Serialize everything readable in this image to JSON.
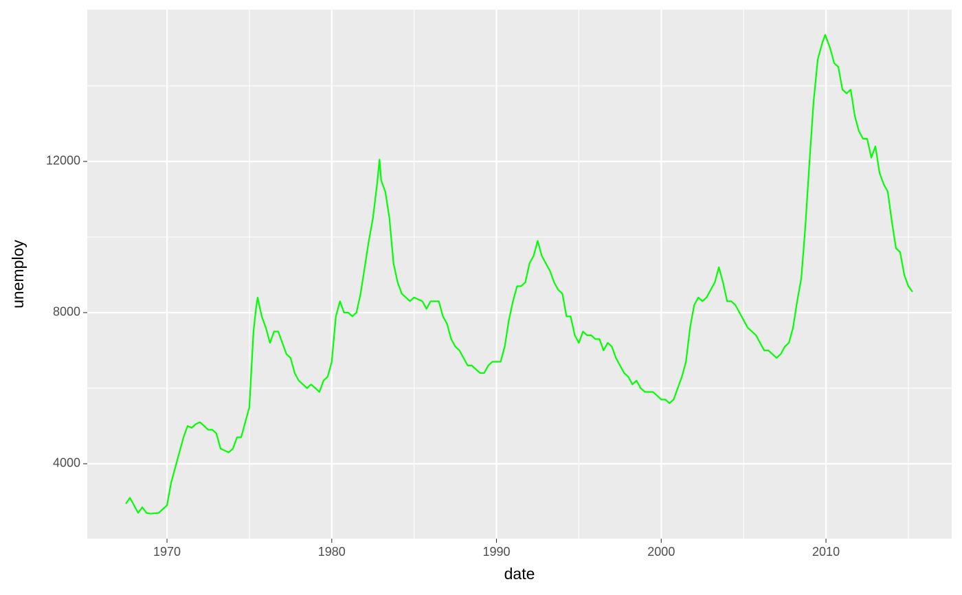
{
  "chart_data": {
    "type": "line",
    "x_label": "date",
    "y_label": "unemploy",
    "x": [
      1967.5,
      1967.75,
      1968.0,
      1968.25,
      1968.5,
      1968.75,
      1969.0,
      1969.5,
      1969.75,
      1970.0,
      1970.25,
      1970.5,
      1970.75,
      1971.0,
      1971.25,
      1971.5,
      1971.75,
      1972.0,
      1972.25,
      1972.5,
      1972.75,
      1973.0,
      1973.25,
      1973.5,
      1973.75,
      1974.0,
      1974.25,
      1974.5,
      1974.75,
      1975.0,
      1975.25,
      1975.4,
      1975.5,
      1975.75,
      1976.0,
      1976.25,
      1976.5,
      1976.75,
      1977.0,
      1977.25,
      1977.5,
      1977.75,
      1978.0,
      1978.25,
      1978.5,
      1978.75,
      1979.0,
      1979.25,
      1979.5,
      1979.75,
      1980.0,
      1980.25,
      1980.5,
      1980.75,
      1981.0,
      1981.25,
      1981.5,
      1981.75,
      1982.0,
      1982.25,
      1982.5,
      1982.75,
      1982.9,
      1983.0,
      1983.25,
      1983.5,
      1983.75,
      1984.0,
      1984.25,
      1984.5,
      1984.75,
      1985.0,
      1985.5,
      1985.75,
      1986.0,
      1986.5,
      1986.75,
      1987.0,
      1987.25,
      1987.5,
      1987.75,
      1988.0,
      1988.25,
      1988.5,
      1988.75,
      1989.0,
      1989.25,
      1989.5,
      1989.75,
      1990.0,
      1990.25,
      1990.5,
      1990.75,
      1991.0,
      1991.25,
      1991.5,
      1991.75,
      1992.0,
      1992.25,
      1992.5,
      1992.75,
      1993.0,
      1993.25,
      1993.5,
      1993.75,
      1994.0,
      1994.25,
      1994.5,
      1994.75,
      1995.0,
      1995.25,
      1995.5,
      1995.75,
      1996.0,
      1996.25,
      1996.5,
      1996.75,
      1997.0,
      1997.25,
      1997.5,
      1997.75,
      1998.0,
      1998.25,
      1998.5,
      1998.75,
      1999.0,
      1999.25,
      1999.5,
      1999.75,
      2000.0,
      2000.25,
      2000.5,
      2000.75,
      2001.0,
      2001.25,
      2001.5,
      2001.75,
      2002.0,
      2002.25,
      2002.5,
      2002.75,
      2003.0,
      2003.25,
      2003.5,
      2003.75,
      2004.0,
      2004.25,
      2004.5,
      2004.75,
      2005.0,
      2005.25,
      2005.5,
      2005.75,
      2006.0,
      2006.25,
      2006.5,
      2006.75,
      2007.0,
      2007.25,
      2007.5,
      2007.75,
      2008.0,
      2008.25,
      2008.5,
      2008.75,
      2009.0,
      2009.25,
      2009.5,
      2009.75,
      2009.95,
      2010.25,
      2010.5,
      2010.75,
      2011.0,
      2011.25,
      2011.5,
      2011.75,
      2012.0,
      2012.25,
      2012.5,
      2012.75,
      2013.0,
      2013.25,
      2013.5,
      2013.75,
      2014.0,
      2014.25,
      2014.5,
      2014.75,
      2015.0,
      2015.25
    ],
    "values": [
      2944,
      3100,
      2900,
      2700,
      2850,
      2700,
      2680,
      2700,
      2800,
      2900,
      3500,
      3900,
      4300,
      4700,
      5000,
      4950,
      5050,
      5100,
      5000,
      4900,
      4900,
      4800,
      4400,
      4350,
      4300,
      4400,
      4700,
      4700,
      5100,
      5500,
      7500,
      8100,
      8400,
      7900,
      7600,
      7200,
      7500,
      7500,
      7200,
      6900,
      6800,
      6400,
      6200,
      6100,
      6000,
      6100,
      6000,
      5900,
      6200,
      6300,
      6700,
      7900,
      8300,
      8000,
      8000,
      7900,
      8000,
      8500,
      9200,
      9900,
      10500,
      11400,
      12050,
      11500,
      11200,
      10500,
      9300,
      8800,
      8500,
      8400,
      8300,
      8400,
      8300,
      8100,
      8300,
      8300,
      7900,
      7700,
      7300,
      7100,
      7000,
      6800,
      6600,
      6600,
      6500,
      6400,
      6400,
      6600,
      6700,
      6700,
      6700,
      7100,
      7800,
      8300,
      8700,
      8700,
      8800,
      9300,
      9500,
      9900,
      9500,
      9300,
      9100,
      8800,
      8600,
      8500,
      7900,
      7900,
      7400,
      7200,
      7500,
      7400,
      7400,
      7300,
      7300,
      7000,
      7200,
      7100,
      6800,
      6600,
      6400,
      6300,
      6100,
      6200,
      6000,
      5900,
      5900,
      5900,
      5800,
      5700,
      5700,
      5600,
      5700,
      6000,
      6300,
      6700,
      7600,
      8200,
      8400,
      8300,
      8400,
      8600,
      8800,
      9200,
      8800,
      8300,
      8300,
      8200,
      8000,
      7800,
      7600,
      7500,
      7400,
      7200,
      7000,
      7000,
      6900,
      6800,
      6900,
      7100,
      7200,
      7600,
      8300,
      8900,
      10300,
      12000,
      13600,
      14700,
      15100,
      15352,
      15000,
      14600,
      14500,
      13900,
      13800,
      13900,
      13200,
      12800,
      12600,
      12600,
      12100,
      12400,
      11700,
      11400,
      11200,
      10400,
      9700,
      9600,
      9000,
      8700,
      8549
    ],
    "color": "#00ff00",
    "xlim": [
      1965.16,
      2017.63
    ],
    "xticks": [
      1970,
      1980,
      1990,
      2000,
      2010
    ],
    "minor_xticks": [
      1975,
      1985,
      1995,
      2005,
      2015
    ],
    "ylim": [
      2018,
      16018
    ],
    "yticks": [
      4000,
      8000,
      12000
    ],
    "minor_yticks": [
      6000,
      10000,
      14000
    ],
    "grid": true
  }
}
